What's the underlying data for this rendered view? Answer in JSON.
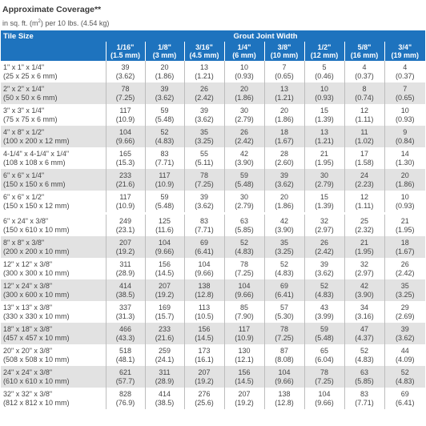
{
  "title": "Approximate Coverage**",
  "subtitle_pre": "in sq. ft. (m",
  "subtitle_sup": "2",
  "subtitle_post": ") per 10 lbs. (4.54 kg)",
  "headers": {
    "tile_size": "Tile Size",
    "grout_joint_width": "Grout Joint Width"
  },
  "columns": [
    {
      "imperial": "1/16\"",
      "metric": "(1.5 mm)"
    },
    {
      "imperial": "1/8\"",
      "metric": "(3 mm)"
    },
    {
      "imperial": "3/16\"",
      "metric": "(4.5 mm)"
    },
    {
      "imperial": "1/4\"",
      "metric": "(6 mm)"
    },
    {
      "imperial": "3/8\"",
      "metric": "(10 mm)"
    },
    {
      "imperial": "1/2\"",
      "metric": "(12 mm)"
    },
    {
      "imperial": "5/8\"",
      "metric": "(16 mm)"
    },
    {
      "imperial": "3/4\"",
      "metric": "(19 mm)"
    }
  ],
  "row_groups": [
    [
      {
        "size": "1\" x 1\" x 1/4\"",
        "metric": "(25 x 25 x 6 mm)",
        "values": [
          [
            "39",
            "(3.62)"
          ],
          [
            "20",
            "(1.86)"
          ],
          [
            "13",
            "(1.21)"
          ],
          [
            "10",
            "(0.93)"
          ],
          [
            "7",
            "(0.65)"
          ],
          [
            "5",
            "(0.46)"
          ],
          [
            "4",
            "(0.37)"
          ],
          [
            "4",
            "(0.37)"
          ]
        ]
      },
      {
        "size": "2\" x 2\" x 1/4\"",
        "metric": "(50 x 50 x 6 mm)",
        "values": [
          [
            "78",
            "(7.25)"
          ],
          [
            "39",
            "(3.62)"
          ],
          [
            "26",
            "(2.42)"
          ],
          [
            "20",
            "(1.86)"
          ],
          [
            "13",
            "(1.21)"
          ],
          [
            "10",
            "(0.93)"
          ],
          [
            "8",
            "(0.74)"
          ],
          [
            "7",
            "(0.65)"
          ]
        ]
      },
      {
        "size": "3\" x 3\" x 1/4\"",
        "metric": "(75 x 75 x 6 mm)",
        "values": [
          [
            "117",
            "(10.9)"
          ],
          [
            "59",
            "(5.48)"
          ],
          [
            "39",
            "(3.62)"
          ],
          [
            "30",
            "(2.79)"
          ],
          [
            "20",
            "(1.86)"
          ],
          [
            "15",
            "(1.39)"
          ],
          [
            "12",
            "(1.11)"
          ],
          [
            "10",
            "(0.93)"
          ]
        ]
      },
      {
        "size": "4\" x 8\" x 1/2\"",
        "metric": "(100 x 200 x 12 mm)",
        "values": [
          [
            "104",
            "(9.66)"
          ],
          [
            "52",
            "(4.83)"
          ],
          [
            "35",
            "(3.25)"
          ],
          [
            "26",
            "(2.42)"
          ],
          [
            "18",
            "(1.67)"
          ],
          [
            "13",
            "(1.21)"
          ],
          [
            "11",
            "(1.02)"
          ],
          [
            "9",
            "(0.84)"
          ]
        ]
      },
      {
        "size": "4-1/4\" x 4-1/4\" x 1/4\"",
        "metric": "(108 x 108 x 6 mm)",
        "values": [
          [
            "165",
            "(15.3)"
          ],
          [
            "83",
            "(7.71)"
          ],
          [
            "55",
            "(5.11)"
          ],
          [
            "42",
            "(3.90)"
          ],
          [
            "28",
            "(2.60)"
          ],
          [
            "21",
            "(1.95)"
          ],
          [
            "17",
            "(1.58)"
          ],
          [
            "14",
            "(1.30)"
          ]
        ]
      },
      {
        "size": "6\" x 6\" x 1/4\"",
        "metric": "(150 x 150 x 6 mm)",
        "values": [
          [
            "233",
            "(21.6)"
          ],
          [
            "117",
            "(10.9)"
          ],
          [
            "78",
            "(7.25)"
          ],
          [
            "59",
            "(5.48)"
          ],
          [
            "39",
            "(3.62)"
          ],
          [
            "30",
            "(2.79)"
          ],
          [
            "24",
            "(2.23)"
          ],
          [
            "20",
            "(1.86)"
          ]
        ]
      },
      {
        "size": "6\" x 6\" x 1/2\"",
        "metric": "(150 x 150 x 12 mm)",
        "values": [
          [
            "117",
            "(10.9)"
          ],
          [
            "59",
            "(5.48)"
          ],
          [
            "39",
            "(3.62)"
          ],
          [
            "30",
            "(2.79)"
          ],
          [
            "20",
            "(1.86)"
          ],
          [
            "15",
            "(1.39)"
          ],
          [
            "12",
            "(1.11)"
          ],
          [
            "10",
            "(0.93)"
          ]
        ]
      }
    ],
    [
      {
        "size": "6\" x 24\" x 3/8\"",
        "metric": "(150 x 610 x 10 mm)",
        "values": [
          [
            "249",
            "(23.1)"
          ],
          [
            "125",
            "(11.6)"
          ],
          [
            "83",
            "(7.71)"
          ],
          [
            "63",
            "(5.85)"
          ],
          [
            "42",
            "(3.90)"
          ],
          [
            "32",
            "(2.97)"
          ],
          [
            "25",
            "(2.32)"
          ],
          [
            "21",
            "(1.95)"
          ]
        ]
      },
      {
        "size": "8\" x 8\" x 3/8\"",
        "metric": "(200 x 200 x 10 mm)",
        "values": [
          [
            "207",
            "(19.2)"
          ],
          [
            "104",
            "(9.66)"
          ],
          [
            "69",
            "(6.41)"
          ],
          [
            "52",
            "(4.83)"
          ],
          [
            "35",
            "(3.25)"
          ],
          [
            "26",
            "(2.42)"
          ],
          [
            "21",
            "(1.95)"
          ],
          [
            "18",
            "(1.67)"
          ]
        ]
      },
      {
        "size": "12\" x 12\" x 3/8\"",
        "metric": "(300 x 300 x 10 mm)",
        "values": [
          [
            "311",
            "(28.9)"
          ],
          [
            "156",
            "(14.5)"
          ],
          [
            "104",
            "(9.66)"
          ],
          [
            "78",
            "(7.25)"
          ],
          [
            "52",
            "(4.83)"
          ],
          [
            "39",
            "(3.62)"
          ],
          [
            "32",
            "(2.97)"
          ],
          [
            "26",
            "(2.42)"
          ]
        ]
      },
      {
        "size": "12\" x 24\" x 3/8\"",
        "metric": "(300 x 600 x 10 mm)",
        "values": [
          [
            "414",
            "(38.5)"
          ],
          [
            "207",
            "(19.2)"
          ],
          [
            "138",
            "(12.8)"
          ],
          [
            "104",
            "(9.66)"
          ],
          [
            "69",
            "(6.41)"
          ],
          [
            "52",
            "(4.83)"
          ],
          [
            "42",
            "(3.90)"
          ],
          [
            "35",
            "(3.25)"
          ]
        ]
      },
      {
        "size": "13\" x 13\" x 3/8\"",
        "metric": "(330 x 330 x 10 mm)",
        "values": [
          [
            "337",
            "(31.3)"
          ],
          [
            "169",
            "(15.7)"
          ],
          [
            "113",
            "(10.5)"
          ],
          [
            "85",
            "(7.90)"
          ],
          [
            "57",
            "(5.30)"
          ],
          [
            "43",
            "(3.99)"
          ],
          [
            "34",
            "(3.16)"
          ],
          [
            "29",
            "(2.69)"
          ]
        ]
      },
      {
        "size": "18\" x 18\" x 3/8\"",
        "metric": "(457 x 457 x 10 mm)",
        "values": [
          [
            "466",
            "(43.3)"
          ],
          [
            "233",
            "(21.6)"
          ],
          [
            "156",
            "(14.5)"
          ],
          [
            "117",
            "(10.9)"
          ],
          [
            "78",
            "(7.25)"
          ],
          [
            "59",
            "(5.48)"
          ],
          [
            "47",
            "(4.37)"
          ],
          [
            "39",
            "(3.62)"
          ]
        ]
      },
      {
        "size": "20\" x 20\" x 3/8\"",
        "metric": "(508 x 508 x 10 mm)",
        "values": [
          [
            "518",
            "(48.1)"
          ],
          [
            "259",
            "(24.1)"
          ],
          [
            "173",
            "(16.1)"
          ],
          [
            "130",
            "(12.1)"
          ],
          [
            "87",
            "(8.08)"
          ],
          [
            "65",
            "(6.04)"
          ],
          [
            "52",
            "(4.83)"
          ],
          [
            "44",
            "(4.09)"
          ]
        ]
      },
      {
        "size": "24\" x 24\" x 3/8\"",
        "metric": "(610 x 610 x 10 mm)",
        "values": [
          [
            "621",
            "(57.7)"
          ],
          [
            "311",
            "(28.9)"
          ],
          [
            "207",
            "(19.2)"
          ],
          [
            "156",
            "(14.5)"
          ],
          [
            "104",
            "(9.66)"
          ],
          [
            "78",
            "(7.25)"
          ],
          [
            "63",
            "(5.85)"
          ],
          [
            "52",
            "(4.83)"
          ]
        ]
      },
      {
        "size": "32\" x 32\" x 3/8\"",
        "metric": "(812 x 812 x 10 mm)",
        "values": [
          [
            "828",
            "(76.9)"
          ],
          [
            "414",
            "(38.5)"
          ],
          [
            "276",
            "(25.6)"
          ],
          [
            "207",
            "(19.2)"
          ],
          [
            "138",
            "(12.8)"
          ],
          [
            "104",
            "(9.66)"
          ],
          [
            "83",
            "(7.71)"
          ],
          [
            "69",
            "(6.41)"
          ]
        ]
      }
    ]
  ]
}
